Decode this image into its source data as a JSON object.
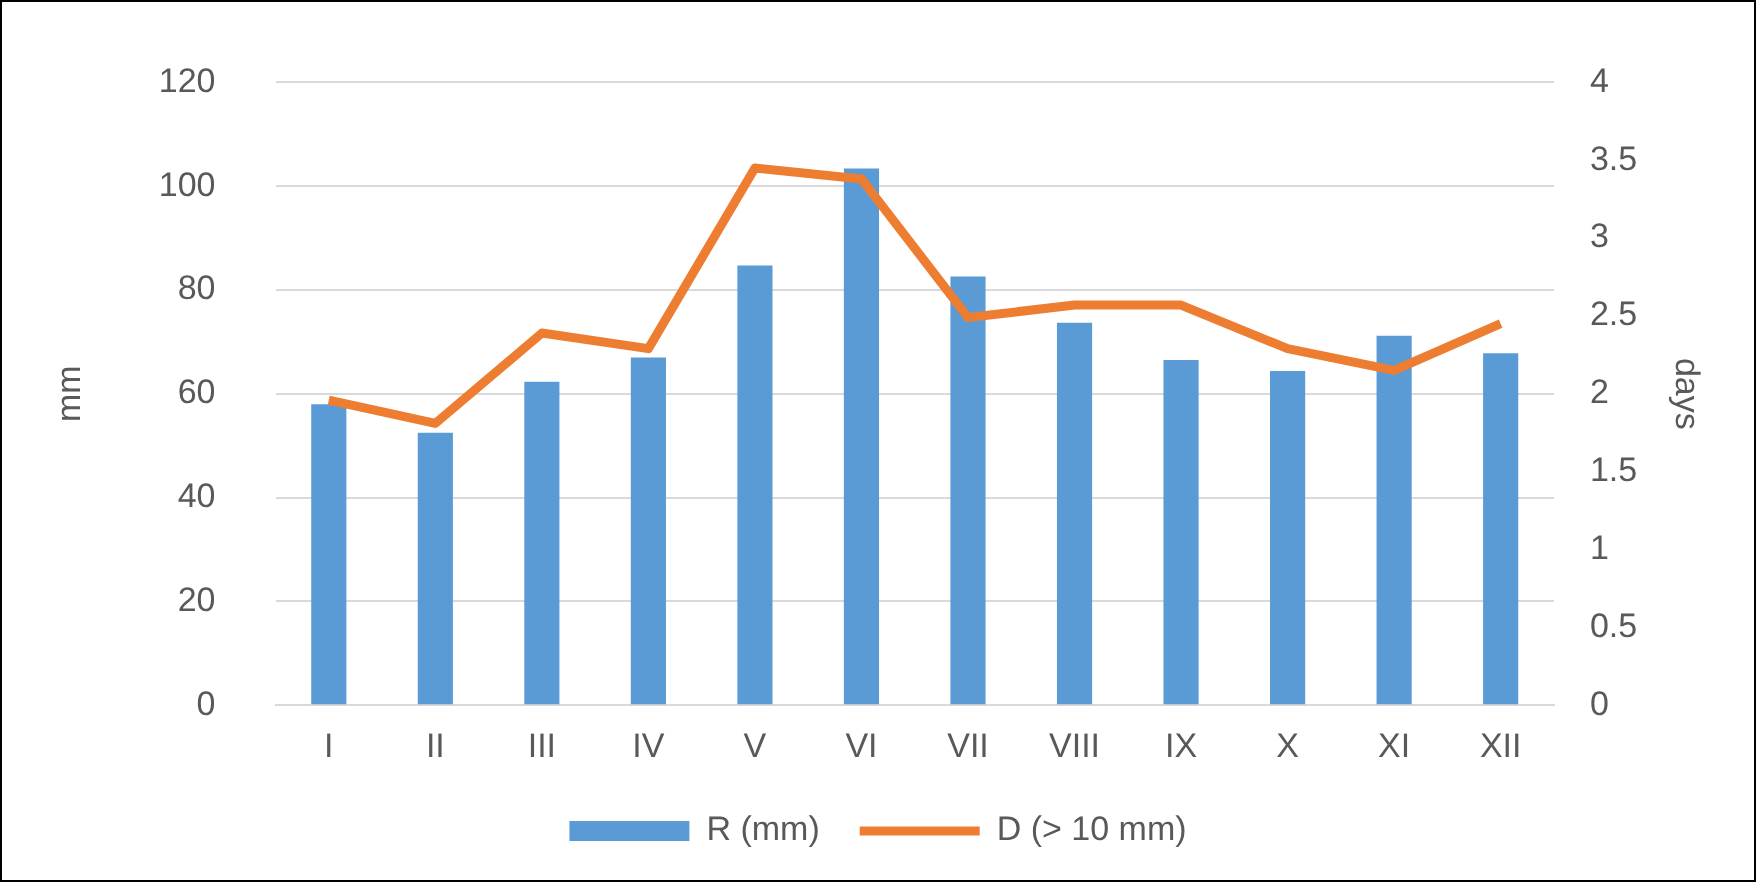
{
  "chart_data": {
    "type": "bar",
    "categories": [
      "I",
      "II",
      "III",
      "IV",
      "V",
      "VI",
      "VII",
      "VIII",
      "IX",
      "X",
      "XI",
      "XII"
    ],
    "series": [
      {
        "name": "R (mm)",
        "color": "#5b9bd5",
        "values": [
          58,
          52.5,
          62.3,
          67,
          84.7,
          103.4,
          82.6,
          73.7,
          66.5,
          64.4,
          71.2,
          67.8
        ]
      },
      {
        "name": "D (> 10 mm)",
        "type": "line",
        "axis": "y2",
        "color": "#ed7d31",
        "values": [
          1.96,
          1.81,
          2.39,
          2.29,
          3.45,
          3.38,
          2.49,
          2.57,
          2.57,
          2.29,
          2.15,
          2.45
        ]
      }
    ],
    "ylabel": "mm",
    "y2label": "days",
    "ylim": [
      0,
      120
    ],
    "yticks": [
      0,
      20,
      40,
      60,
      80,
      100,
      120
    ],
    "y2lim": [
      0,
      4
    ],
    "y2ticks": [
      0,
      0.5,
      1,
      1.5,
      2,
      2.5,
      3,
      3.5,
      4
    ],
    "grid": "y",
    "legend": "bottom",
    "marker": "none"
  }
}
